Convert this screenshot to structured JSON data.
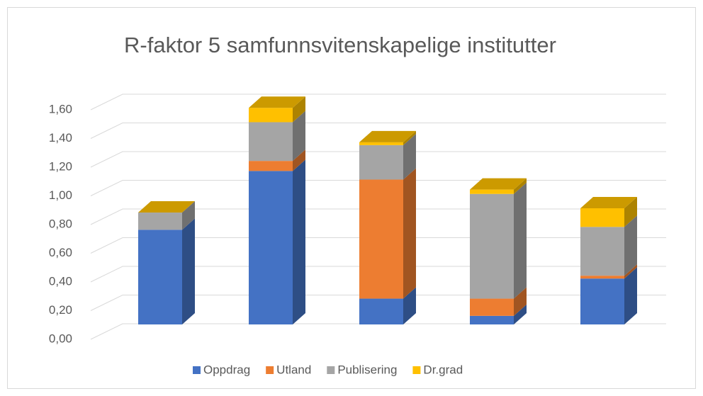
{
  "chart_data": {
    "type": "bar3d_stacked",
    "title": "R-faktor 5 samfunnsvitenskapelige institutter",
    "categories": [
      null,
      null,
      null,
      null,
      null
    ],
    "series": [
      {
        "name": "Oppdrag",
        "color": "#4472c4",
        "values": [
          0.66,
          1.07,
          0.18,
          0.06,
          0.32
        ]
      },
      {
        "name": "Utland",
        "color": "#ed7d31",
        "values": [
          0,
          0.07,
          0.83,
          0.12,
          0.02
        ]
      },
      {
        "name": "Publisering",
        "color": "#a5a5a5",
        "values": [
          0.12,
          0.27,
          0.24,
          0.73,
          0.34
        ]
      },
      {
        "name": "Dr.grad",
        "color": "#ffc000",
        "values": [
          0,
          0.1,
          0.02,
          0.03,
          0.13
        ]
      }
    ],
    "ylim": [
      0,
      1.6
    ],
    "yticks": [
      {
        "value": 0,
        "label": "0,00"
      },
      {
        "value": 0.2,
        "label": "0,20"
      },
      {
        "value": 0.4,
        "label": "0,40"
      },
      {
        "value": 0.6,
        "label": "0,60"
      },
      {
        "value": 0.8,
        "label": "0,80"
      },
      {
        "value": 1.0,
        "label": "1,00"
      },
      {
        "value": 1.2,
        "label": "1,20"
      },
      {
        "value": 1.4,
        "label": "1,40"
      },
      {
        "value": 1.6,
        "label": "1,60"
      }
    ],
    "grid": true,
    "legend": "bottom"
  }
}
